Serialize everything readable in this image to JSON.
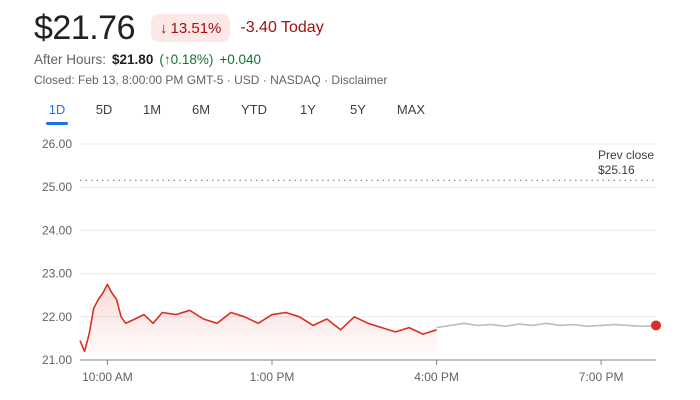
{
  "quote": {
    "price": "$21.76",
    "change_pct": "13.51%",
    "change_arrow": "↓",
    "change_today": "-3.40 Today"
  },
  "after_hours": {
    "label": "After Hours:",
    "price": "$21.80",
    "pct": "(↑0.18%)",
    "abs": "+0.040"
  },
  "closed_line": "Closed: Feb 13, 8:00:00 PM GMT-5 · USD · NASDAQ · Disclaimer",
  "tabs": [
    "1D",
    "5D",
    "1M",
    "6M",
    "YTD",
    "1Y",
    "5Y",
    "MAX"
  ],
  "active_tab": "1D",
  "colors": {
    "down": "#d93025",
    "after_hours_line": "#bdbdbd",
    "accent": "#1a73e8"
  },
  "chart_data": {
    "type": "line",
    "y_ticks": [
      "26.00",
      "25.00",
      "24.00",
      "23.00",
      "22.00",
      "21.00"
    ],
    "x_ticks": [
      "10:00 AM",
      "1:00 PM",
      "4:00 PM",
      "7:00 PM"
    ],
    "ylim": [
      21.0,
      26.0
    ],
    "prev_close": {
      "label": "Prev close",
      "value": "$25.16",
      "y": 25.16
    },
    "regular_session": {
      "x": [
        "9:30",
        "9:35",
        "9:40",
        "9:45",
        "9:50",
        "9:55",
        "10:00",
        "10:05",
        "10:10",
        "10:15",
        "10:20",
        "10:30",
        "10:40",
        "10:50",
        "11:00",
        "11:15",
        "11:30",
        "11:45",
        "12:00",
        "12:15",
        "12:30",
        "12:45",
        "1:00",
        "1:15",
        "1:30",
        "1:45",
        "2:00",
        "2:15",
        "2:30",
        "2:45",
        "3:00",
        "3:15",
        "3:30",
        "3:45",
        "4:00"
      ],
      "y": [
        21.45,
        21.2,
        21.6,
        22.2,
        22.4,
        22.55,
        22.75,
        22.55,
        22.4,
        22.0,
        21.85,
        21.95,
        22.05,
        21.85,
        22.1,
        22.05,
        22.15,
        21.95,
        21.85,
        22.1,
        22.0,
        21.85,
        22.05,
        22.1,
        22.0,
        21.8,
        21.95,
        21.7,
        22.0,
        21.85,
        21.75,
        21.65,
        21.75,
        21.6,
        21.7
      ]
    },
    "after_hours_session": {
      "x": [
        "4:00",
        "4:15",
        "4:30",
        "4:45",
        "5:00",
        "5:15",
        "5:30",
        "5:45",
        "6:00",
        "6:15",
        "6:30",
        "6:45",
        "7:00",
        "7:15",
        "7:30",
        "7:45",
        "8:00"
      ],
      "y": [
        21.75,
        21.8,
        21.85,
        21.8,
        21.82,
        21.78,
        21.83,
        21.8,
        21.85,
        21.8,
        21.82,
        21.78,
        21.8,
        21.82,
        21.8,
        21.78,
        21.8
      ]
    },
    "last_point": 21.8
  }
}
